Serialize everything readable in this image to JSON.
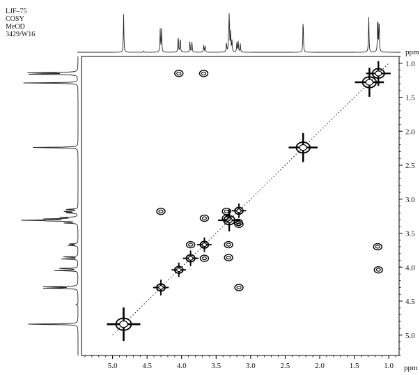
{
  "header_lines": [
    "LJF–75",
    "COSY",
    "MeOD",
    "3429/W16"
  ],
  "chart_data": {
    "type": "scatter",
    "title": "",
    "xlabel": "ppm",
    "ylabel": "ppm",
    "xlim": [
      5.45,
      0.85
    ],
    "ylim": [
      5.3,
      0.9
    ],
    "x_ticks": [
      5.0,
      4.5,
      4.0,
      3.5,
      3.0,
      2.5,
      2.0,
      1.5,
      1.0
    ],
    "y_ticks": [
      1.0,
      1.5,
      2.0,
      2.5,
      3.0,
      3.5,
      4.0,
      4.5,
      5.0
    ],
    "tick_labels_x": [
      "5.0",
      "4.5",
      "4.0",
      "3.5",
      "3.0",
      "2.5",
      "2.0",
      "1.5",
      "1.0"
    ],
    "tick_labels_y": [
      "1.0",
      "1.5",
      "2.0",
      "2.5",
      "3.0",
      "3.5",
      "4.0",
      "4.5",
      "5.0"
    ],
    "projection_1d_peaks": [
      {
        "ppm": 4.84,
        "height": 1.0
      },
      {
        "ppm": 4.55,
        "height": 0.04
      },
      {
        "ppm": 4.31,
        "height": 0.6
      },
      {
        "ppm": 4.29,
        "height": 0.6
      },
      {
        "ppm": 4.05,
        "height": 0.45
      },
      {
        "ppm": 4.02,
        "height": 0.4
      },
      {
        "ppm": 3.88,
        "height": 0.3
      },
      {
        "ppm": 3.85,
        "height": 0.28
      },
      {
        "ppm": 3.68,
        "height": 0.18
      },
      {
        "ppm": 3.66,
        "height": 0.16
      },
      {
        "ppm": 3.35,
        "height": 0.25
      },
      {
        "ppm": 3.32,
        "height": 0.4
      },
      {
        "ppm": 3.31,
        "height": 1.0
      },
      {
        "ppm": 3.29,
        "height": 0.55
      },
      {
        "ppm": 3.27,
        "height": 0.3
      },
      {
        "ppm": 3.2,
        "height": 0.25
      },
      {
        "ppm": 3.18,
        "height": 0.28
      },
      {
        "ppm": 3.15,
        "height": 0.22
      },
      {
        "ppm": 2.24,
        "height": 0.9
      },
      {
        "ppm": 1.29,
        "height": 0.98
      },
      {
        "ppm": 1.16,
        "height": 0.95
      },
      {
        "ppm": 1.14,
        "height": 0.9
      }
    ],
    "diagonal_peaks": [
      {
        "x": 4.84,
        "y": 4.84,
        "size": 3
      },
      {
        "x": 4.3,
        "y": 4.3,
        "size": 1.4
      },
      {
        "x": 4.04,
        "y": 4.04,
        "size": 1.3
      },
      {
        "x": 3.87,
        "y": 3.87,
        "size": 1.4
      },
      {
        "x": 3.67,
        "y": 3.67,
        "size": 1.3
      },
      {
        "x": 3.31,
        "y": 3.31,
        "size": 2
      },
      {
        "x": 3.17,
        "y": 3.17,
        "size": 1.3
      },
      {
        "x": 2.24,
        "y": 2.24,
        "size": 2.6
      },
      {
        "x": 1.28,
        "y": 1.28,
        "size": 2.6
      },
      {
        "x": 1.15,
        "y": 1.15,
        "size": 2.2
      }
    ],
    "cross_peaks": [
      {
        "x": 4.04,
        "y": 1.15
      },
      {
        "x": 3.68,
        "y": 1.15
      },
      {
        "x": 1.15,
        "y": 4.04
      },
      {
        "x": 1.16,
        "y": 3.7
      },
      {
        "x": 4.3,
        "y": 3.18
      },
      {
        "x": 3.67,
        "y": 3.28
      },
      {
        "x": 3.87,
        "y": 3.67
      },
      {
        "x": 3.67,
        "y": 3.87
      },
      {
        "x": 3.32,
        "y": 3.67
      },
      {
        "x": 3.32,
        "y": 3.86
      },
      {
        "x": 3.17,
        "y": 4.3
      },
      {
        "x": 3.35,
        "y": 3.18
      },
      {
        "x": 3.18,
        "y": 3.34
      },
      {
        "x": 3.35,
        "y": 3.28
      },
      {
        "x": 3.17,
        "y": 3.37
      }
    ],
    "grid": false
  }
}
